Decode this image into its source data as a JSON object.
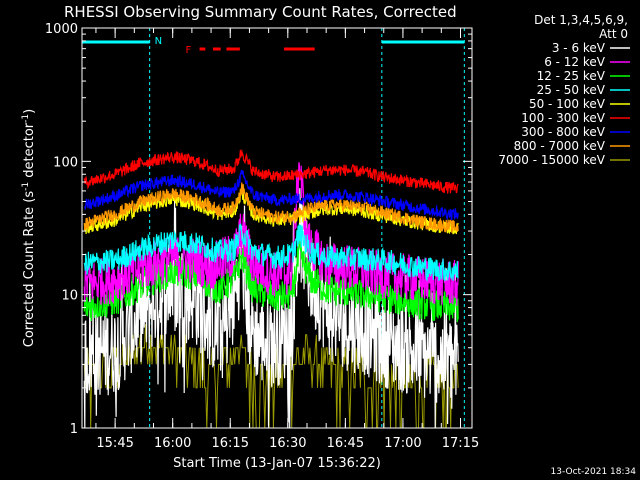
{
  "chart_data": {
    "type": "line",
    "title": "RHESSI Observing Summary Count Rates, Corrected",
    "xlabel": "Start Time (13-Jan-07 15:36:22)",
    "ylabel_main": "Corrected Count Rate (s",
    "ylabel_sup1": "-1",
    "ylabel_mid": " detector",
    "ylabel_sup2": "-1",
    "ylabel_end": ")",
    "yscale": "log",
    "xlim": [
      "15:36:22",
      "17:18:00"
    ],
    "ylim": [
      1,
      1000
    ],
    "x_ticks": [
      "15:45",
      "16:00",
      "16:15",
      "16:30",
      "16:45",
      "17:00",
      "17:15"
    ],
    "y_ticks": [
      "1",
      "10",
      "100",
      "1000"
    ],
    "detectors": "Det 1,3,4,5,6,9,",
    "attenuator": "Att 0",
    "legend_position": "top-right",
    "night_label": "N",
    "flare_label": "F",
    "night_intervals": [
      [
        "15:36:22",
        "15:54:00"
      ],
      [
        "16:54:30",
        "17:16:00"
      ]
    ],
    "flare_segments": [
      [
        "16:07:00",
        "16:08:30"
      ],
      [
        "16:10:30",
        "16:12:30"
      ],
      [
        "16:14:00",
        "16:17:30"
      ],
      [
        "16:29:00",
        "16:37:00"
      ]
    ],
    "series": [
      {
        "name": "3 - 6 keV",
        "color": "#ffffff",
        "x": [
          "15:36",
          "15:45",
          "15:52",
          "16:00",
          "16:05",
          "16:10",
          "16:13",
          "16:16",
          "16:18",
          "16:20",
          "16:23",
          "16:27",
          "16:31",
          "16:33",
          "16:36",
          "16:40",
          "16:45",
          "16:50",
          "16:55",
          "17:00",
          "17:05",
          "17:14"
        ],
        "y": [
          3.5,
          4,
          7,
          12,
          10,
          6,
          5,
          9,
          20,
          6,
          4.5,
          4.5,
          5.5,
          30,
          13,
          8,
          6,
          5.5,
          4.5,
          4,
          3.5,
          3.2
        ]
      },
      {
        "name": "6 - 12 keV",
        "color": "#ff00ff",
        "x": [
          "15:36",
          "15:45",
          "15:52",
          "16:00",
          "16:06",
          "16:10",
          "16:16",
          "16:18",
          "16:21",
          "16:27",
          "16:31",
          "16:33",
          "16:35",
          "16:40",
          "16:45",
          "16:50",
          "16:55",
          "17:00",
          "17:05",
          "17:14"
        ],
        "y": [
          12,
          13,
          16,
          19,
          18,
          16,
          20,
          30,
          17,
          14,
          15,
          100,
          25,
          17,
          16,
          15,
          14,
          13.5,
          13,
          12
        ]
      },
      {
        "name": "12 - 25 keV",
        "color": "#00ff00",
        "x": [
          "15:36",
          "15:45",
          "15:52",
          "16:00",
          "16:06",
          "16:12",
          "16:16",
          "16:18",
          "16:21",
          "16:27",
          "16:31",
          "16:33",
          "16:36",
          "16:40",
          "16:45",
          "16:50",
          "16:55",
          "17:00",
          "17:05",
          "17:14"
        ],
        "y": [
          8,
          9,
          12,
          15,
          14,
          11,
          13,
          20,
          11,
          9.5,
          10,
          20,
          13,
          11,
          10.5,
          10,
          9.5,
          9,
          8.5,
          8
        ]
      },
      {
        "name": "25 - 50 keV",
        "color": "#00ffff",
        "x": [
          "15:36",
          "15:45",
          "15:52",
          "16:00",
          "16:06",
          "16:12",
          "16:16",
          "16:18",
          "16:21",
          "16:27",
          "16:31",
          "16:33",
          "16:36",
          "16:40",
          "16:45",
          "16:50",
          "16:55",
          "17:00",
          "17:05",
          "17:14"
        ],
        "y": [
          17,
          18,
          22,
          26,
          24,
          21,
          22,
          30,
          21,
          19,
          20,
          29,
          21,
          19,
          19,
          18.5,
          18,
          17,
          16,
          15
        ]
      },
      {
        "name": "50 - 100 keV",
        "color": "#ffff00",
        "x": [
          "15:36",
          "15:45",
          "15:52",
          "16:00",
          "16:06",
          "16:12",
          "16:16",
          "16:18",
          "16:21",
          "16:27",
          "16:31",
          "16:36",
          "16:40",
          "16:45",
          "16:50",
          "16:55",
          "17:00",
          "17:05",
          "17:14"
        ],
        "y": [
          31,
          36,
          46,
          52,
          48,
          40,
          42,
          58,
          40,
          36,
          37,
          41,
          44,
          44,
          42,
          39,
          36,
          34,
          31
        ]
      },
      {
        "name": "100 - 300 keV",
        "color": "#ff0000",
        "x": [
          "15:36",
          "15:45",
          "15:52",
          "16:00",
          "16:06",
          "16:12",
          "16:16",
          "16:18",
          "16:21",
          "16:27",
          "16:31",
          "16:36",
          "16:40",
          "16:45",
          "16:50",
          "16:55",
          "17:00",
          "17:05",
          "17:14"
        ],
        "y": [
          68,
          80,
          98,
          108,
          100,
          85,
          88,
          118,
          84,
          76,
          78,
          82,
          86,
          86,
          83,
          76,
          72,
          68,
          62
        ]
      },
      {
        "name": "300 - 800 keV",
        "color": "#0000ff",
        "x": [
          "15:36",
          "15:45",
          "15:52",
          "16:00",
          "16:06",
          "16:12",
          "16:16",
          "16:18",
          "16:21",
          "16:27",
          "16:31",
          "16:36",
          "16:40",
          "16:45",
          "16:50",
          "16:55",
          "17:00",
          "17:05",
          "17:14"
        ],
        "y": [
          46,
          55,
          66,
          72,
          67,
          58,
          60,
          80,
          56,
          51,
          52,
          53,
          56,
          56,
          54,
          50,
          47,
          44,
          40
        ]
      },
      {
        "name": "800 - 7000 keV",
        "color": "#ff9900",
        "x": [
          "15:36",
          "15:45",
          "15:52",
          "16:00",
          "16:06",
          "16:12",
          "16:16",
          "16:18",
          "16:21",
          "16:27",
          "16:31",
          "16:36",
          "16:40",
          "16:45",
          "16:50",
          "16:55",
          "17:00",
          "17:05",
          "17:14"
        ],
        "y": [
          33,
          40,
          50,
          57,
          52,
          43,
          45,
          64,
          42,
          38,
          39,
          44,
          47,
          47,
          45,
          41,
          38,
          35,
          32
        ]
      },
      {
        "name": "7000 - 15000 keV",
        "color": "#999900",
        "x": [
          "15:36",
          "15:45",
          "15:52",
          "15:54",
          "16:07",
          "16:10",
          "16:13",
          "16:16",
          "16:17",
          "16:20",
          "16:23",
          "16:27",
          "16:32",
          "16:34",
          "16:40",
          "16:50",
          "17:00",
          "17:14"
        ],
        "y": [
          2,
          3,
          4,
          4.5,
          3,
          2.2,
          3,
          3.5,
          4.8,
          2.5,
          2,
          2.3,
          3,
          3.5,
          2.8,
          2.5,
          2.2,
          2
        ]
      }
    ]
  },
  "timestamp": "13-Oct-2021 18:34"
}
